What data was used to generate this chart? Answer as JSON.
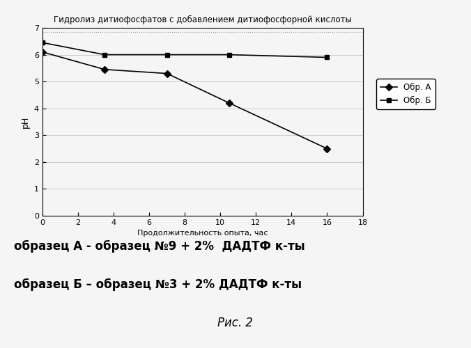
{
  "title": "Гидролиз дитиофосфатов с добавлением дитиофосфорной кислоты",
  "xlabel": "Продолжительность опыта, час",
  "ylabel": "pH",
  "xlim": [
    0,
    18
  ],
  "ylim": [
    0,
    7
  ],
  "xticks": [
    0,
    2,
    4,
    6,
    8,
    10,
    12,
    14,
    16,
    18
  ],
  "yticks": [
    0,
    1,
    2,
    3,
    4,
    5,
    6,
    7
  ],
  "series_A": {
    "x": [
      0,
      3.5,
      7,
      10.5,
      16
    ],
    "y": [
      6.1,
      5.45,
      5.3,
      4.2,
      2.5
    ],
    "label": "Обр. А",
    "color": "#000000",
    "marker": "D",
    "markersize": 5,
    "linewidth": 1.2
  },
  "series_B": {
    "x": [
      0,
      3.5,
      7,
      10.5,
      16
    ],
    "y": [
      6.45,
      6.0,
      6.0,
      6.0,
      5.9
    ],
    "label": "Обр. Б",
    "color": "#000000",
    "marker": "s",
    "markersize": 5,
    "linewidth": 1.2
  },
  "annotation_line1": "образец А - образец №9 + 2%  ДАДТФ к-ты",
  "annotation_line2": "образец Б – образец №3 + 2% ДАДТФ к-ты",
  "annotation_line3": "Рис. 2",
  "grid_color": "#bbbbbb",
  "background_color": "#f5f5f5",
  "dotted_line_y": 6.85,
  "dotted_line_color": "#999999",
  "ann_fontsize": 12,
  "caption_fontsize": 12,
  "title_fontsize": 8.5,
  "axis_fontsize": 8,
  "legend_fontsize": 8.5
}
